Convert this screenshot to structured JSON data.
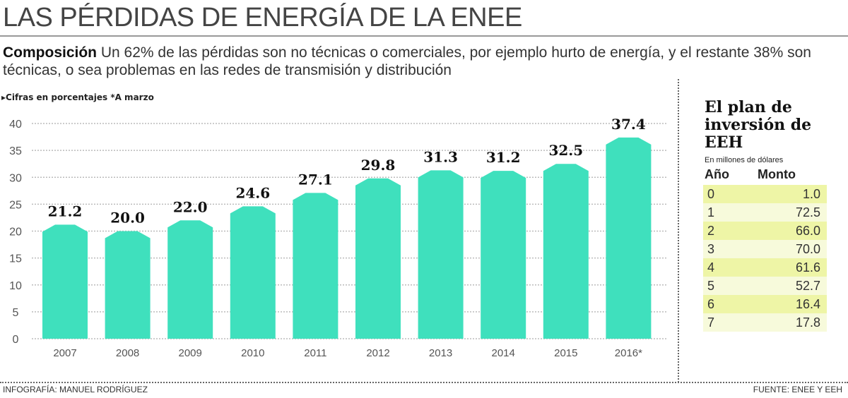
{
  "title": "LAS PÉRDIDAS DE ENERGÍA DE LA ENEE",
  "subtitle": {
    "lead": "Composición",
    "text": " Un 62% de las pérdidas son no técnicas o comerciales, por ejemplo hurto de energía, y el restante 38% son técnicas, o sea problemas en las redes de transmisión y distribución"
  },
  "note": "Cifras en porcentajes *A marzo",
  "chart_data": {
    "type": "bar",
    "categories": [
      "2007",
      "2008",
      "2009",
      "2010",
      "2011",
      "2012",
      "2013",
      "2014",
      "2015",
      "2016*"
    ],
    "values": [
      21.2,
      20.0,
      22.0,
      24.6,
      27.1,
      29.8,
      31.3,
      31.2,
      32.5,
      37.4
    ],
    "value_labels": [
      "21.2",
      "20.0",
      "22.0",
      "24.6",
      "27.1",
      "29.8",
      "31.3",
      "31.2",
      "32.5",
      "37.4"
    ],
    "ylim": [
      0,
      40
    ],
    "yticks": [
      0,
      5,
      10,
      15,
      20,
      25,
      30,
      35,
      40
    ],
    "grid": true,
    "bar_color": "#3fe0bd"
  },
  "panel": {
    "title": "El plan de inversión de EEH",
    "unit": "En millones de dólares",
    "headers": [
      "Año",
      "Monto"
    ],
    "rows": [
      [
        "0",
        "1.0"
      ],
      [
        "1",
        "72.5"
      ],
      [
        "2",
        "66.0"
      ],
      [
        "3",
        "70.0"
      ],
      [
        "4",
        "61.6"
      ],
      [
        "5",
        "52.7"
      ],
      [
        "6",
        "16.4"
      ],
      [
        "7",
        "17.8"
      ]
    ]
  },
  "credit": "INFOGRAFÍA: MANUEL RODRÍGUEZ",
  "source": "FUENTE: ENEE Y EEH"
}
